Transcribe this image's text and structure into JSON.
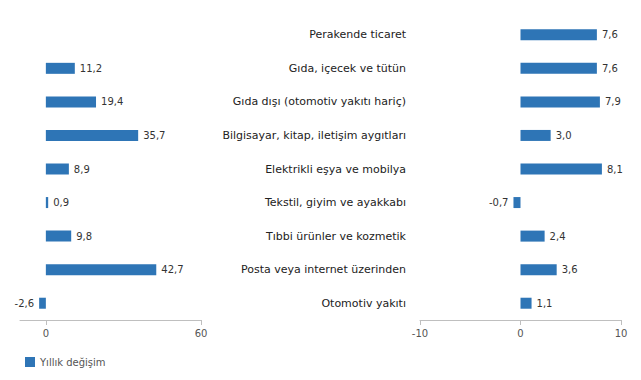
{
  "chart_data": [
    {
      "type": "bar",
      "orientation": "horizontal",
      "categories": [
        "Perakende ticaret",
        "Gıda, içecek ve tütün",
        "Gıda dışı (otomotiv yakıtı hariç)",
        "Bilgisayar, kitap, iletişim aygıtları",
        "Elektrikli eşya ve mobilya",
        "Tekstil, giyim ve ayakkabı",
        "Tıbbi ürünler ve kozmetik",
        "Posta veya internet üzerinden",
        "Otomotiv yakıtı"
      ],
      "series": [
        {
          "name": "Yıllık değişim",
          "color": "#2e75b6",
          "values": [
            null,
            11.2,
            19.4,
            35.7,
            8.9,
            0.9,
            9.8,
            42.7,
            -2.6
          ],
          "value_labels": [
            null,
            "11,2",
            "19,4",
            "35,7",
            "8,9",
            "0,9",
            "9,8",
            "42,7",
            "-2,6"
          ]
        }
      ],
      "xlim": [
        -10,
        60
      ],
      "xticks": [
        0,
        60
      ],
      "data_labels": true,
      "grid": false,
      "legend": "bottom-left",
      "tick_labels": "x"
    },
    {
      "type": "bar",
      "orientation": "horizontal",
      "categories": [
        "Perakende ticaret",
        "Gıda, içecek ve tütün",
        "Gıda dışı (otomotiv yakıtı hariç)",
        "Bilgisayar, kitap, iletişim aygıtları",
        "Elektrikli eşya ve mobilya",
        "Tekstil, giyim ve ayakkabı",
        "Tıbbi ürünler ve kozmetik",
        "Posta veya internet üzerinden",
        "Otomotiv yakıtı"
      ],
      "series": [
        {
          "color": "#2e75b6",
          "values": [
            7.6,
            7.6,
            7.9,
            3.0,
            8.1,
            -0.7,
            2.4,
            3.6,
            1.1
          ],
          "value_labels": [
            "7,6",
            "7,6",
            "7,9",
            "3,0",
            "8,1",
            "-0,7",
            "2,4",
            "3,6",
            "1,1"
          ]
        }
      ],
      "xlim": [
        -10,
        10
      ],
      "xticks": [
        -10,
        0,
        10
      ],
      "data_labels": true,
      "grid": false
    }
  ]
}
